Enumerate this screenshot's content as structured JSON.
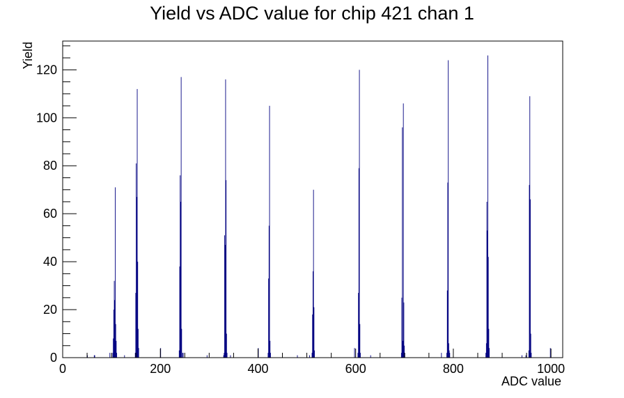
{
  "chart_data": {
    "type": "bar",
    "title": "Yield vs ADC value for chip 421 chan 1",
    "xlabel": "ADC value",
    "ylabel": "Yield",
    "xlim": [
      0,
      1024
    ],
    "ylim": [
      0,
      132
    ],
    "x_ticks": [
      0,
      200,
      400,
      600,
      800,
      1000
    ],
    "y_ticks": [
      0,
      20,
      40,
      60,
      80,
      100,
      120
    ],
    "grid": false,
    "legend": "none",
    "bar_color": "#000080",
    "bins": [
      {
        "x": 50,
        "y": 1
      },
      {
        "x": 64,
        "y": 1
      },
      {
        "x": 65,
        "y": 1
      },
      {
        "x": 96,
        "y": 2
      },
      {
        "x": 102,
        "y": 2
      },
      {
        "x": 103,
        "y": 8
      },
      {
        "x": 104,
        "y": 20
      },
      {
        "x": 105,
        "y": 32
      },
      {
        "x": 106,
        "y": 24
      },
      {
        "x": 107,
        "y": 71
      },
      {
        "x": 108,
        "y": 14
      },
      {
        "x": 109,
        "y": 7
      },
      {
        "x": 110,
        "y": 2
      },
      {
        "x": 126,
        "y": 1
      },
      {
        "x": 148,
        "y": 2
      },
      {
        "x": 149,
        "y": 27
      },
      {
        "x": 150,
        "y": 81
      },
      {
        "x": 151,
        "y": 67
      },
      {
        "x": 152,
        "y": 112
      },
      {
        "x": 153,
        "y": 40
      },
      {
        "x": 154,
        "y": 12
      },
      {
        "x": 155,
        "y": 4
      },
      {
        "x": 200,
        "y": 4
      },
      {
        "x": 238,
        "y": 3
      },
      {
        "x": 239,
        "y": 38
      },
      {
        "x": 240,
        "y": 76
      },
      {
        "x": 241,
        "y": 65
      },
      {
        "x": 242,
        "y": 117
      },
      {
        "x": 243,
        "y": 12
      },
      {
        "x": 245,
        "y": 2
      },
      {
        "x": 246,
        "y": 2
      },
      {
        "x": 295,
        "y": 1
      },
      {
        "x": 329,
        "y": 1
      },
      {
        "x": 330,
        "y": 2
      },
      {
        "x": 331,
        "y": 51
      },
      {
        "x": 332,
        "y": 47
      },
      {
        "x": 333,
        "y": 116
      },
      {
        "x": 334,
        "y": 74
      },
      {
        "x": 335,
        "y": 10
      },
      {
        "x": 336,
        "y": 2
      },
      {
        "x": 343,
        "y": 1
      },
      {
        "x": 400,
        "y": 4
      },
      {
        "x": 420,
        "y": 2
      },
      {
        "x": 421,
        "y": 33
      },
      {
        "x": 422,
        "y": 55
      },
      {
        "x": 423,
        "y": 105
      },
      {
        "x": 424,
        "y": 7
      },
      {
        "x": 425,
        "y": 2
      },
      {
        "x": 480,
        "y": 1
      },
      {
        "x": 505,
        "y": 1
      },
      {
        "x": 510,
        "y": 2
      },
      {
        "x": 511,
        "y": 18
      },
      {
        "x": 512,
        "y": 36
      },
      {
        "x": 513,
        "y": 70
      },
      {
        "x": 514,
        "y": 21
      },
      {
        "x": 515,
        "y": 3
      },
      {
        "x": 597,
        "y": 4
      },
      {
        "x": 604,
        "y": 2
      },
      {
        "x": 605,
        "y": 27
      },
      {
        "x": 606,
        "y": 79
      },
      {
        "x": 607,
        "y": 120
      },
      {
        "x": 608,
        "y": 14
      },
      {
        "x": 609,
        "y": 2
      },
      {
        "x": 630,
        "y": 1
      },
      {
        "x": 693,
        "y": 2
      },
      {
        "x": 694,
        "y": 25
      },
      {
        "x": 695,
        "y": 96
      },
      {
        "x": 696,
        "y": 7
      },
      {
        "x": 697,
        "y": 106
      },
      {
        "x": 698,
        "y": 23
      },
      {
        "x": 699,
        "y": 5
      },
      {
        "x": 700,
        "y": 2
      },
      {
        "x": 775,
        "y": 2
      },
      {
        "x": 786,
        "y": 2
      },
      {
        "x": 787,
        "y": 28
      },
      {
        "x": 788,
        "y": 73
      },
      {
        "x": 789,
        "y": 124
      },
      {
        "x": 790,
        "y": 6
      },
      {
        "x": 791,
        "y": 3
      },
      {
        "x": 792,
        "y": 2
      },
      {
        "x": 866,
        "y": 2
      },
      {
        "x": 867,
        "y": 6
      },
      {
        "x": 868,
        "y": 65
      },
      {
        "x": 869,
        "y": 53
      },
      {
        "x": 870,
        "y": 126
      },
      {
        "x": 871,
        "y": 42
      },
      {
        "x": 872,
        "y": 12
      },
      {
        "x": 873,
        "y": 4
      },
      {
        "x": 940,
        "y": 1
      },
      {
        "x": 948,
        "y": 1
      },
      {
        "x": 954,
        "y": 3
      },
      {
        "x": 955,
        "y": 72
      },
      {
        "x": 956,
        "y": 109
      },
      {
        "x": 957,
        "y": 66
      },
      {
        "x": 958,
        "y": 10
      },
      {
        "x": 959,
        "y": 2
      },
      {
        "x": 998,
        "y": 4
      }
    ]
  }
}
